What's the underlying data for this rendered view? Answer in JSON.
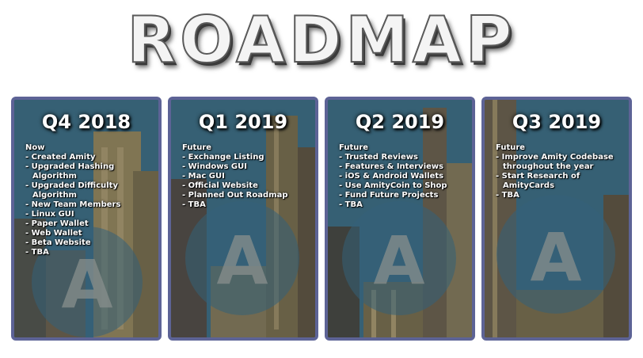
{
  "title": "ROADMAP",
  "colors": {
    "card_border": "#5d6396",
    "card_tint": "#2b4d5e",
    "text": "#ffffff"
  },
  "cards": [
    {
      "quarter": "Q4 2018",
      "status": "Now",
      "items": [
        "- Created Amity",
        "- Upgraded Hashing Algorithm",
        "- Upgraded Difficulty Algorithm",
        "- New Team Members",
        "- Linux GUI",
        "- Paper Wallet",
        "- Web Wallet",
        "- Beta Website",
        "- TBA"
      ]
    },
    {
      "quarter": "Q1 2019",
      "status": "Future",
      "items": [
        "- Exchange Listing",
        "- Windows GUI",
        "- Mac GUI",
        "- Official Website",
        "- Planned Out Roadmap",
        "- TBA"
      ]
    },
    {
      "quarter": "Q2 2019",
      "status": "Future",
      "items": [
        "- Trusted Reviews",
        "- Features & Interviews",
        "- iOS & Android Wallets",
        "- Use AmityCoin to Shop",
        "- Fund Future Projects",
        "- TBA"
      ]
    },
    {
      "quarter": "Q3 2019",
      "status": "Future",
      "items": [
        "- Improve Amity Codebase throughout the year",
        "- Start Research of AmityCards",
        "- TBA"
      ]
    }
  ]
}
